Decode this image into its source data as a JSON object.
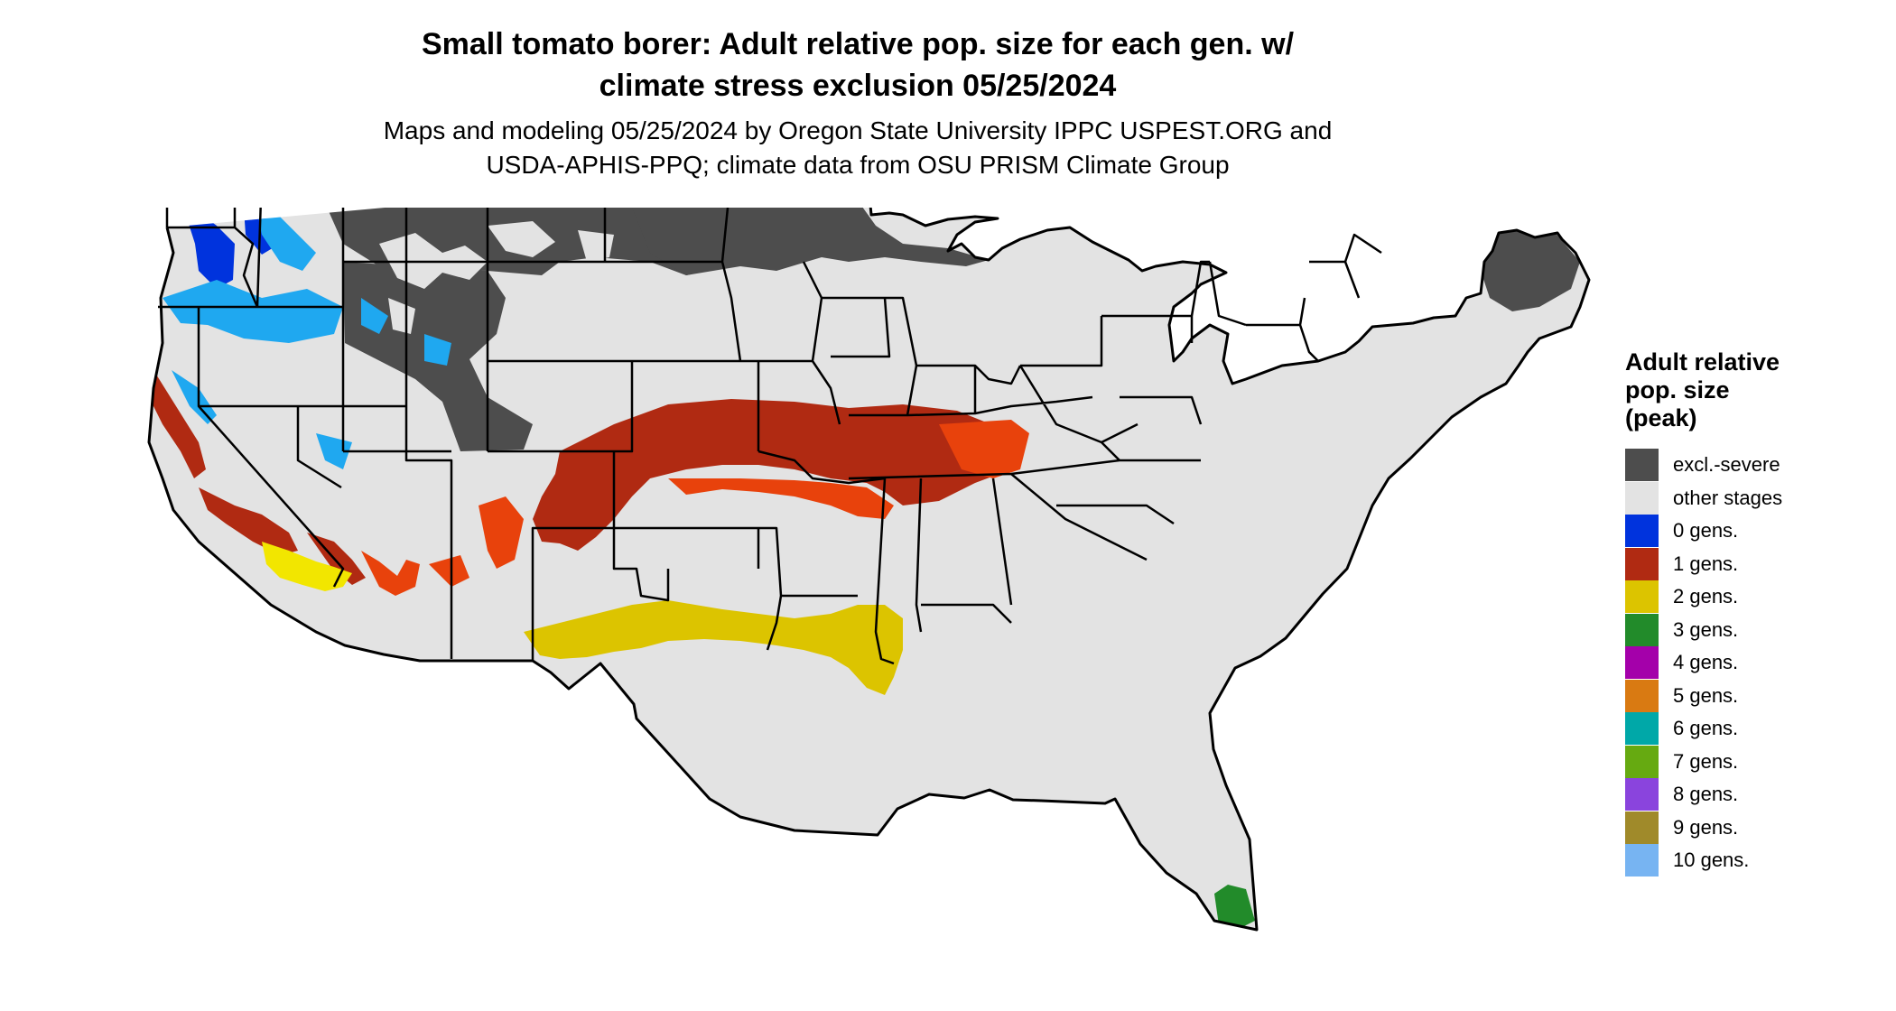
{
  "title_lines": [
    "Small tomato borer: Adult relative pop. size for each gen. w/",
    "climate stress exclusion 05/25/2024"
  ],
  "subtitle_lines": [
    "Maps and modeling 05/25/2024 by Oregon State University IPPC USPEST.ORG and",
    "USDA-APHIS-PPQ; climate data from OSU PRISM Climate Group"
  ],
  "legend": {
    "title_lines": [
      "Adult relative",
      "pop. size",
      "(peak)"
    ],
    "items": [
      {
        "label": "excl.-severe",
        "color": "#4d4d4d"
      },
      {
        "label": "other stages",
        "color": "#e3e3e3"
      },
      {
        "label": "0 gens.",
        "color": "#0033dd"
      },
      {
        "label": "1 gens.",
        "color": "#b02a12"
      },
      {
        "label": "2 gens.",
        "color": "#dcc400"
      },
      {
        "label": "3 gens.",
        "color": "#228b2a"
      },
      {
        "label": "4 gens.",
        "color": "#a400aa"
      },
      {
        "label": "5 gens.",
        "color": "#d97a12"
      },
      {
        "label": "6 gens.",
        "color": "#00a8a8"
      },
      {
        "label": "7 gens.",
        "color": "#66aa11"
      },
      {
        "label": "8 gens.",
        "color": "#8a44dd"
      },
      {
        "label": "9 gens.",
        "color": "#a08a2a"
      },
      {
        "label": "10 gens.",
        "color": "#77b4f2"
      }
    ]
  },
  "map_colors": {
    "excluded": "#4d4d4d",
    "other": "#e3e3e3",
    "zero_gen": "#0033dd",
    "zero_gen_light": "#1fa8f0",
    "one_gen": "#b02a12",
    "one_gen_light": "#e8420c",
    "two_gen": "#dcc400",
    "two_gen_light": "#f2e600",
    "three_gen": "#228b2a",
    "border": "#000000"
  }
}
